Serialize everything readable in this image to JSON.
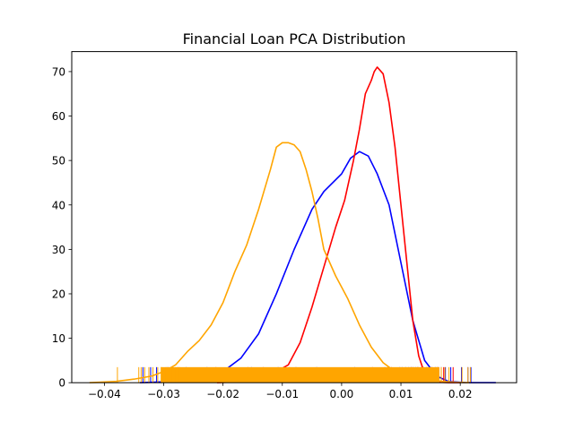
{
  "chart_data": {
    "type": "line",
    "title": "Financial Loan PCA Distribution",
    "xlabel": "",
    "ylabel": "",
    "xlim": [
      -0.0455,
      0.0295
    ],
    "ylim": [
      0,
      74.5
    ],
    "x_ticks": [
      -0.04,
      -0.03,
      -0.02,
      -0.01,
      0.0,
      0.01,
      0.02
    ],
    "x_tick_labels": [
      "−0.04",
      "−0.03",
      "−0.02",
      "−0.01",
      "0.00",
      "0.01",
      "0.02"
    ],
    "y_ticks": [
      0,
      10,
      20,
      30,
      40,
      50,
      60,
      70
    ],
    "y_tick_labels": [
      "0",
      "10",
      "20",
      "30",
      "40",
      "50",
      "60",
      "70"
    ],
    "grid": false,
    "legend": "none",
    "rug_height": 3.5,
    "series": [
      {
        "color": "#0000ff",
        "x": [
          -0.034,
          -0.03,
          -0.025,
          -0.02,
          -0.017,
          -0.014,
          -0.011,
          -0.008,
          -0.005,
          -0.003,
          0.0,
          0.0015,
          0.003,
          0.0045,
          0.006,
          0.008,
          0.01,
          0.012,
          0.014,
          0.016,
          0.018,
          0.021,
          0.026
        ],
        "y": [
          0,
          0.2,
          0.8,
          2.5,
          5.5,
          11,
          20,
          30,
          39,
          43,
          47,
          50.5,
          52,
          51,
          47,
          40,
          27,
          14,
          5,
          1.5,
          0.3,
          0,
          0
        ],
        "rug": [
          -0.0335,
          -0.0322,
          -0.0312,
          -0.0293,
          -0.0276,
          -0.0262,
          -0.0227,
          -0.0152,
          -0.0107,
          -0.0077,
          -0.0042,
          0.0022,
          0.0073,
          0.0078,
          0.0098,
          0.0102,
          0.0108,
          0.0113,
          0.0117,
          0.0121,
          0.0125,
          0.0129,
          0.0134,
          0.0138,
          0.0143,
          0.0148,
          0.0152,
          0.0158,
          0.0163,
          0.0168,
          0.0175,
          0.0184,
          0.0202,
          0.0213,
          0.0218
        ]
      },
      {
        "color": "#ff0000",
        "x": [
          -0.021,
          -0.016,
          -0.013,
          -0.011,
          -0.009,
          -0.007,
          -0.005,
          -0.003,
          -0.001,
          0.0005,
          0.002,
          0.003,
          0.004,
          0.005,
          0.0055,
          0.006,
          0.007,
          0.008,
          0.009,
          0.01,
          0.011,
          0.012,
          0.013,
          0.014,
          0.015,
          0.016,
          0.018,
          0.02
        ],
        "y": [
          0,
          0.3,
          1,
          2.5,
          4,
          9,
          17,
          26,
          35,
          41,
          50,
          57,
          65,
          68,
          70,
          71,
          69.5,
          63,
          53,
          40,
          27,
          14,
          6,
          2,
          0.6,
          0.2,
          0,
          0
        ],
        "rug": [
          -0.0212,
          -0.0158,
          -0.0132,
          -0.0088,
          0.0052,
          0.0084,
          0.0118,
          0.0128,
          0.0137,
          0.0145,
          0.0152,
          0.0161,
          0.0172,
          0.0188
        ]
      },
      {
        "color": "#ffa500",
        "x": [
          -0.0425,
          -0.038,
          -0.035,
          -0.032,
          -0.03,
          -0.028,
          -0.026,
          -0.024,
          -0.022,
          -0.02,
          -0.018,
          -0.016,
          -0.014,
          -0.012,
          -0.011,
          -0.01,
          -0.009,
          -0.008,
          -0.007,
          -0.006,
          -0.005,
          -0.004,
          -0.003,
          -0.001,
          0.001,
          0.003,
          0.005,
          0.007,
          0.009,
          0.011,
          0.013,
          0.015,
          0.017,
          0.019,
          0.0215
        ],
        "y": [
          0,
          0.3,
          0.8,
          1.5,
          2.5,
          4,
          7,
          9.5,
          13,
          18,
          25,
          31,
          39,
          48,
          53,
          54,
          54,
          53.5,
          52,
          48,
          43,
          37,
          30,
          24,
          19,
          13,
          8,
          4.5,
          2.5,
          1.5,
          1.0,
          0.6,
          0.3,
          0.1,
          0
        ],
        "rug_band": [
          -0.0305,
          0.0165
        ],
        "rug": [
          -0.0378,
          -0.0342,
          -0.0338,
          -0.0332,
          -0.0325,
          -0.0318,
          -0.031,
          -0.0304,
          -0.0296,
          -0.0287,
          -0.028,
          -0.0273,
          0.0168,
          0.0174,
          0.0181,
          0.0203,
          0.0213,
          0.0217
        ]
      }
    ]
  }
}
